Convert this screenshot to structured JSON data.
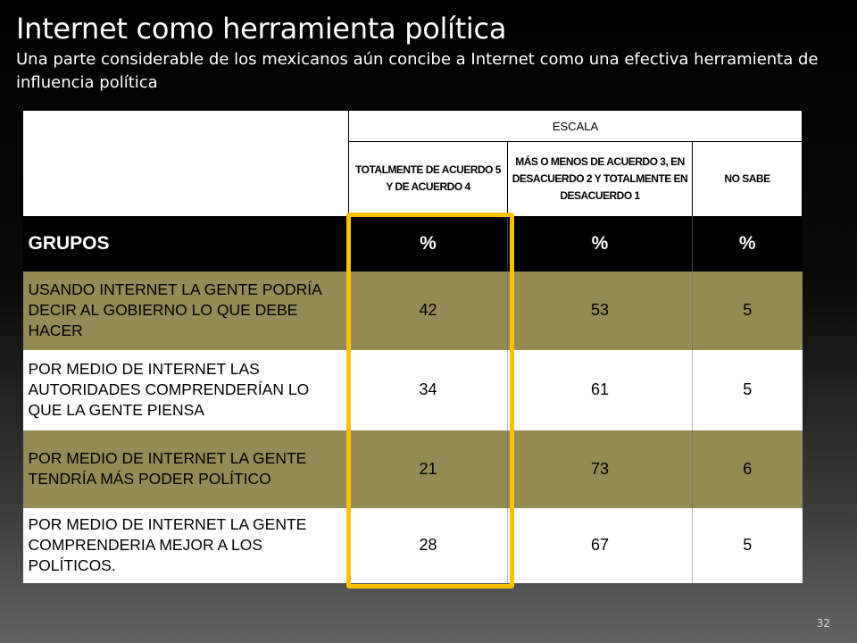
{
  "slide": {
    "title": "Internet como herramienta política",
    "subtitle": "Una parte considerable de los mexicanos aún concibe a Internet como una efectiva herramienta de influencia política",
    "page_number": "32"
  },
  "table": {
    "scale_header": "ESCALA",
    "columns": [
      "TOTALMENTE DE ACUERDO 5 Y DE ACUERDO 4",
      "MÁS O MENOS DE ACUERDO 3, EN DESACUERDO 2 Y TOTALMENTE EN DESACUERDO 1",
      "NO SABE"
    ],
    "groups_header": "GRUPOS",
    "unit_headers": [
      "%",
      "%",
      "%"
    ],
    "rows": [
      {
        "label": "USANDO INTERNET LA GENTE PODRÍA DECIR AL GOBIERNO LO QUE DEBE HACER",
        "values": [
          "42",
          "53",
          "5"
        ]
      },
      {
        "label": "POR MEDIO DE INTERNET LAS AUTORIDADES COMPRENDERÍAN LO QUE LA GENTE PIENSA",
        "values": [
          "34",
          "61",
          "5"
        ]
      },
      {
        "label": "POR MEDIO DE INTERNET LA GENTE TENDRÍA MÁS PODER POLÍTICO",
        "values": [
          "21",
          "73",
          "6"
        ]
      },
      {
        "label": "POR MEDIO DE INTERNET LA GENTE COMPRENDERIA MEJOR A LOS POLÍTICOS.",
        "values": [
          "28",
          "67",
          "5"
        ]
      }
    ]
  },
  "colors": {
    "olive_row": "#948a54",
    "highlight_border": "#ffc000",
    "header_band": "#000000"
  }
}
